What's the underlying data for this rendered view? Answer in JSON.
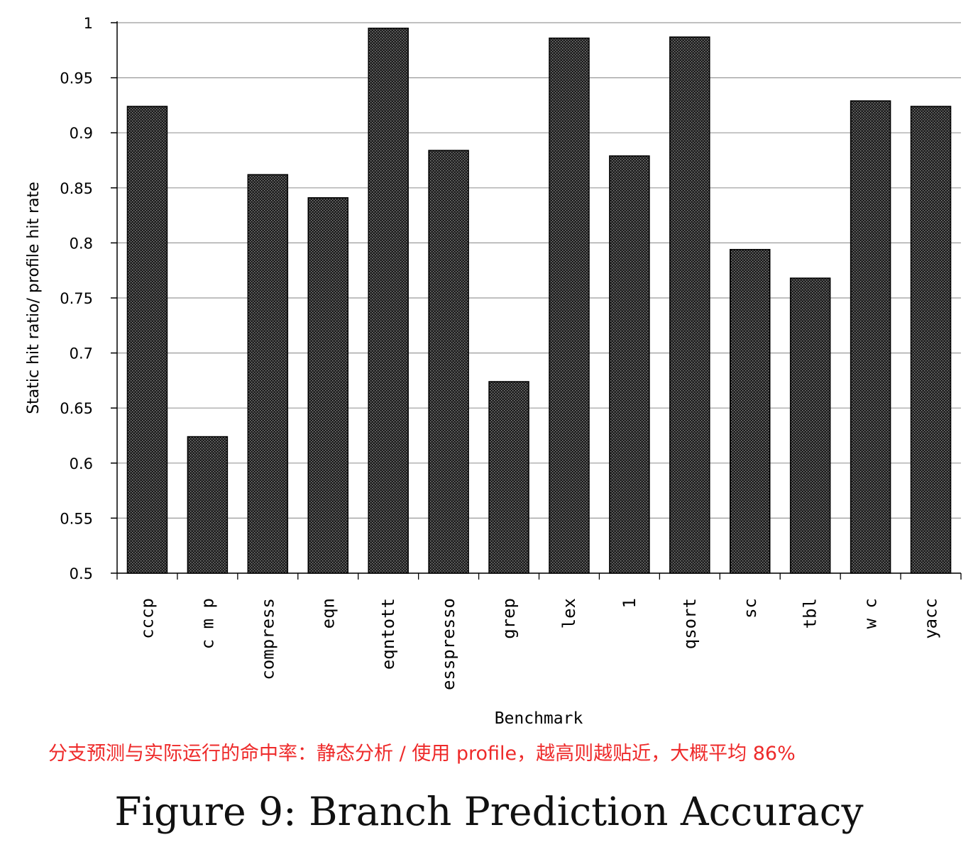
{
  "chart_data": {
    "type": "bar",
    "title": "",
    "xlabel": "Benchmark",
    "ylabel": "Static hit ratio/ profile hit rate",
    "ylim": [
      0.5,
      1
    ],
    "yticks": [
      0.5,
      0.55,
      0.6,
      0.65,
      0.7,
      0.75,
      0.8,
      0.85,
      0.9,
      0.95,
      1
    ],
    "ytick_labels": [
      "0.5",
      "0.55",
      "0.6",
      "0.65",
      "0.7",
      "0.75",
      "0.8",
      "0.85",
      "0.9",
      "0.95",
      "1"
    ],
    "grid": true,
    "categories": [
      "cccp",
      "cmp",
      "compress",
      "eqn",
      "eqntott",
      "esspresso",
      "grep",
      "lex",
      "l",
      "qsort",
      "sc",
      "tbl",
      "wc",
      "yacc"
    ],
    "category_labels": [
      "cccp",
      "c m p",
      "compress",
      "eqn",
      "eqntott",
      "esspresso",
      "grep",
      "lex",
      "1",
      "qsort",
      "sc",
      "tbl",
      "w c",
      "yacc"
    ],
    "values": [
      0.924,
      0.624,
      0.862,
      0.841,
      0.995,
      0.884,
      0.674,
      0.986,
      0.879,
      0.987,
      0.794,
      0.768,
      0.929,
      0.924
    ],
    "bar_color": "#2a2a2a"
  },
  "annotation": "分支预测与实际运行的命中率：静态分析 / 使用 profile，越高则越贴近，大概平均 86%",
  "caption": "Figure 9: Branch Prediction Accuracy"
}
